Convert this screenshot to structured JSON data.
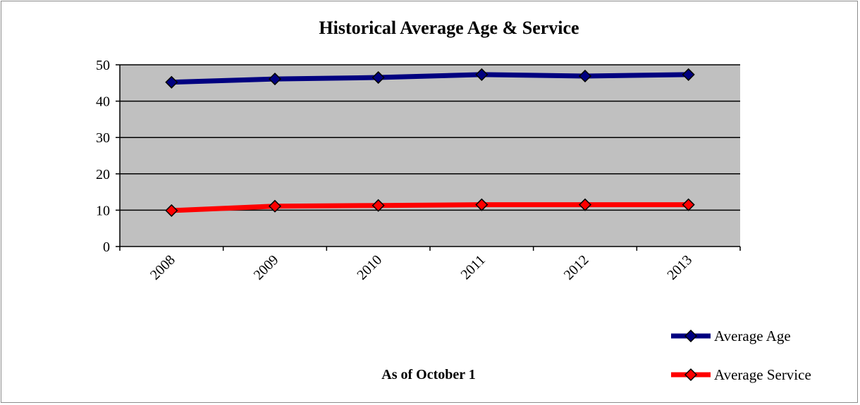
{
  "chart_data": {
    "type": "line",
    "title": "Historical Average Age & Service",
    "xlabel": "As of October 1",
    "ylabel": "",
    "categories": [
      "2008",
      "2009",
      "2010",
      "2011",
      "2012",
      "2013"
    ],
    "ylim": [
      0,
      50
    ],
    "yticks": [
      "0",
      "10",
      "20",
      "30",
      "40",
      "50"
    ],
    "grid": true,
    "legend_position": "bottom-right",
    "plot_background": "#c0c0c0",
    "series": [
      {
        "name": "Average Age",
        "color": "#000080",
        "marker": "diamond",
        "values": [
          45.2,
          46.1,
          46.5,
          47.3,
          46.9,
          47.3
        ]
      },
      {
        "name": "Average Service",
        "color": "#ff0000",
        "marker": "diamond",
        "values": [
          9.9,
          11.1,
          11.3,
          11.5,
          11.5,
          11.5
        ]
      }
    ]
  }
}
